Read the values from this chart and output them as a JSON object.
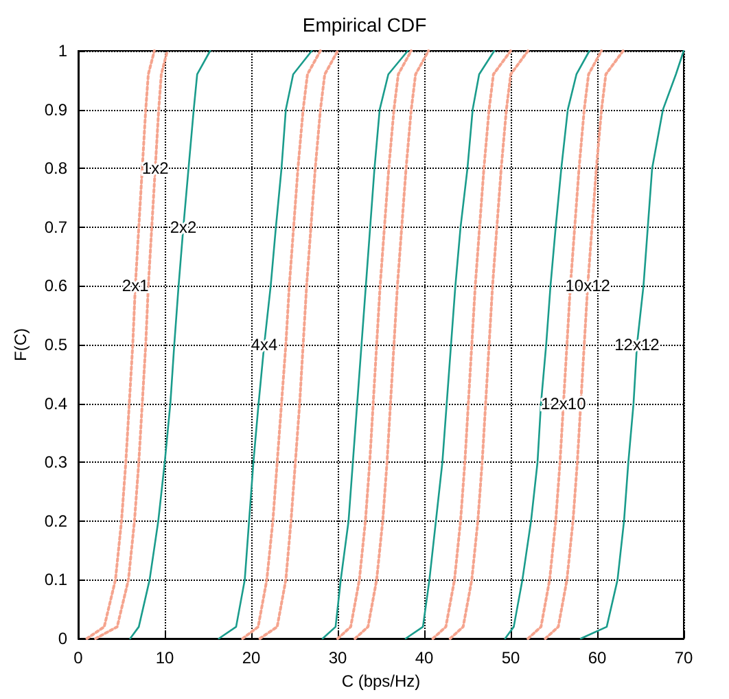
{
  "chart_data": {
    "type": "line",
    "title": "Empirical CDF",
    "xlabel": "C (bps/Hz)",
    "ylabel": "F(C)",
    "xlim": [
      0,
      70
    ],
    "xticks": [
      0,
      10,
      20,
      30,
      40,
      50,
      60,
      70
    ],
    "ylim": [
      0,
      1
    ],
    "yticks": [
      0,
      0.1,
      0.2,
      0.3,
      0.4,
      0.5,
      0.6,
      0.7,
      0.8,
      0.9,
      1
    ],
    "grid": true,
    "marker": "none",
    "series": [
      {
        "color": "#f5a48e",
        "line_style": "dotted",
        "x": [
          1,
          3,
          4.3,
          5,
          5.5,
          5.9,
          6.3,
          6.6,
          7,
          7.4,
          7.8,
          8.1,
          8.8
        ],
        "values": [
          0,
          0.02,
          0.1,
          0.2,
          0.3,
          0.4,
          0.5,
          0.6,
          0.7,
          0.8,
          0.9,
          0.96,
          1
        ]
      },
      {
        "color": "#f5a48e",
        "line_style": "dotted",
        "x": [
          2,
          4.5,
          5.8,
          6.5,
          7,
          7.4,
          7.8,
          8.1,
          8.5,
          8.9,
          9.3,
          9.6,
          10.3
        ],
        "values": [
          0,
          0.02,
          0.1,
          0.2,
          0.3,
          0.4,
          0.5,
          0.6,
          0.7,
          0.8,
          0.9,
          0.96,
          1
        ]
      },
      {
        "color": "#1a9c8c",
        "line_style": "solid",
        "x": [
          6,
          7,
          8.25,
          9.25,
          10,
          10.65,
          11.1,
          11.6,
          12.15,
          12.75,
          13.35,
          13.75,
          15.25
        ],
        "values": [
          0,
          0.02,
          0.1,
          0.2,
          0.3,
          0.4,
          0.5,
          0.6,
          0.7,
          0.8,
          0.9,
          0.96,
          1
        ]
      },
      {
        "color": "#1a9c8c",
        "line_style": "solid",
        "x": [
          16.25,
          18.25,
          19.25,
          19.75,
          20.25,
          20.85,
          21.5,
          22.25,
          22.85,
          23.5,
          24,
          24.85,
          27
        ],
        "values": [
          0,
          0.02,
          0.1,
          0.2,
          0.3,
          0.4,
          0.5,
          0.6,
          0.7,
          0.8,
          0.9,
          0.96,
          1
        ]
      },
      {
        "color": "#f5a48e",
        "line_style": "dotted",
        "x": [
          19,
          20.8,
          21.8,
          22.5,
          23,
          23.5,
          24,
          24.4,
          24.9,
          25.4,
          26,
          26.5,
          28
        ],
        "values": [
          0,
          0.02,
          0.1,
          0.2,
          0.3,
          0.4,
          0.5,
          0.6,
          0.7,
          0.8,
          0.9,
          0.96,
          1
        ]
      },
      {
        "color": "#f5a48e",
        "line_style": "dotted",
        "x": [
          21,
          23,
          24,
          24.6,
          25.1,
          25.6,
          26,
          26.4,
          26.9,
          27.4,
          28,
          28.5,
          30
        ],
        "values": [
          0,
          0.02,
          0.1,
          0.2,
          0.3,
          0.4,
          0.5,
          0.6,
          0.7,
          0.8,
          0.9,
          0.96,
          1
        ]
      },
      {
        "color": "#1a9c8c",
        "line_style": "solid",
        "x": [
          28.25,
          29.75,
          30.35,
          31.25,
          31.75,
          32.25,
          32.75,
          33.25,
          33.75,
          34.25,
          34.85,
          35.85,
          38.1
        ],
        "values": [
          0,
          0.02,
          0.1,
          0.2,
          0.3,
          0.4,
          0.5,
          0.6,
          0.7,
          0.8,
          0.9,
          0.96,
          1
        ]
      },
      {
        "color": "#f5a48e",
        "line_style": "dotted",
        "x": [
          30,
          31.5,
          32.5,
          33.2,
          33.7,
          34.1,
          34.5,
          34.9,
          35.4,
          35.9,
          36.5,
          37,
          38.5
        ],
        "values": [
          0,
          0.02,
          0.1,
          0.2,
          0.3,
          0.4,
          0.5,
          0.6,
          0.7,
          0.8,
          0.9,
          0.96,
          1
        ]
      },
      {
        "color": "#f5a48e",
        "line_style": "dotted",
        "x": [
          32,
          33.5,
          34.5,
          35.2,
          35.7,
          36.1,
          36.5,
          36.9,
          37.4,
          37.9,
          38.5,
          39,
          40.5
        ],
        "values": [
          0,
          0.02,
          0.1,
          0.2,
          0.3,
          0.4,
          0.5,
          0.6,
          0.7,
          0.8,
          0.9,
          0.96,
          1
        ]
      },
      {
        "color": "#1a9c8c",
        "line_style": "solid",
        "x": [
          37.85,
          39.85,
          40.6,
          41.35,
          42.1,
          42.6,
          43.1,
          43.6,
          44.2,
          45,
          45.6,
          46.35,
          48.1
        ],
        "values": [
          0,
          0.02,
          0.1,
          0.2,
          0.3,
          0.4,
          0.5,
          0.6,
          0.7,
          0.8,
          0.9,
          0.96,
          1
        ]
      },
      {
        "color": "#f5a48e",
        "line_style": "dotted",
        "x": [
          41,
          42.5,
          43.5,
          44.2,
          44.7,
          45.1,
          45.5,
          45.9,
          46.4,
          46.9,
          47.5,
          48,
          50
        ],
        "values": [
          0,
          0.02,
          0.1,
          0.2,
          0.3,
          0.4,
          0.5,
          0.6,
          0.7,
          0.8,
          0.9,
          0.96,
          1
        ]
      },
      {
        "color": "#f5a48e",
        "line_style": "dotted",
        "x": [
          43,
          44.5,
          45.5,
          46.2,
          46.7,
          47.1,
          47.5,
          47.9,
          48.4,
          48.9,
          49.5,
          50,
          52
        ],
        "values": [
          0,
          0.02,
          0.1,
          0.2,
          0.3,
          0.4,
          0.5,
          0.6,
          0.7,
          0.8,
          0.9,
          0.96,
          1
        ]
      },
      {
        "color": "#1a9c8c",
        "line_style": "solid",
        "x": [
          49.35,
          50.35,
          51.35,
          52.35,
          53.1,
          53.5,
          54.1,
          54.6,
          55.2,
          55.85,
          56.6,
          57.6,
          59.1
        ],
        "values": [
          0,
          0.02,
          0.1,
          0.2,
          0.3,
          0.4,
          0.5,
          0.6,
          0.7,
          0.8,
          0.9,
          0.96,
          1
        ]
      },
      {
        "color": "#f5a48e",
        "line_style": "dotted",
        "x": [
          52,
          53.5,
          54.5,
          55.2,
          55.7,
          56.1,
          56.5,
          56.9,
          57.4,
          57.9,
          58.5,
          59,
          60.5
        ],
        "values": [
          0,
          0.02,
          0.1,
          0.2,
          0.3,
          0.4,
          0.5,
          0.6,
          0.7,
          0.8,
          0.9,
          0.96,
          1
        ]
      },
      {
        "color": "#f5a48e",
        "line_style": "dotted",
        "x": [
          54,
          55.5,
          56.5,
          57.2,
          57.7,
          58.1,
          58.5,
          58.9,
          59.4,
          59.9,
          60.5,
          61,
          63
        ],
        "values": [
          0,
          0.02,
          0.1,
          0.2,
          0.3,
          0.4,
          0.5,
          0.6,
          0.7,
          0.8,
          0.9,
          0.96,
          1
        ]
      },
      {
        "color": "#1a9c8c",
        "line_style": "solid",
        "x": [
          58.1,
          61.1,
          62.35,
          63.1,
          63.6,
          64.2,
          64.6,
          65.35,
          65.85,
          66.35,
          67.6,
          69.1,
          70
        ],
        "values": [
          0,
          0.02,
          0.1,
          0.2,
          0.3,
          0.4,
          0.5,
          0.6,
          0.7,
          0.8,
          0.9,
          0.96,
          1
        ]
      }
    ],
    "annotations": [
      {
        "text": "1x2",
        "x": 8.9,
        "y": 0.8
      },
      {
        "text": "2x1",
        "x": 6.6,
        "y": 0.6
      },
      {
        "text": "2x2",
        "x": 12.15,
        "y": 0.7
      },
      {
        "text": "4x4",
        "x": 21.5,
        "y": 0.5
      },
      {
        "text": "10x12",
        "x": 58.9,
        "y": 0.6
      },
      {
        "text": "12x10",
        "x": 56.1,
        "y": 0.4
      },
      {
        "text": "12x12",
        "x": 64.6,
        "y": 0.5
      }
    ]
  }
}
